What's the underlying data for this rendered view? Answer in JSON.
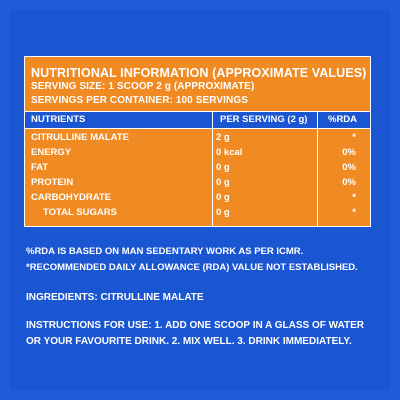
{
  "header": {
    "title": "NUTRITIONAL INFORMATION (APPROXIMATE VALUES)",
    "serving_size": "SERVING SIZE: 1 SCOOP 2 g (APPROXIMATE)",
    "servings_per_container": "SERVINGS PER CONTAINER: 100 SERVINGS"
  },
  "table": {
    "columns": [
      "NUTRIENTS",
      "PER SERVING (2 g)",
      "%RDA"
    ],
    "rows": [
      {
        "nutrient": "CITRULLINE MALATE",
        "per_serving": "2 g",
        "rda": "*"
      },
      {
        "nutrient": "ENERGY",
        "per_serving": "0 kcal",
        "rda": "0%"
      },
      {
        "nutrient": "FAT",
        "per_serving": "0 g",
        "rda": "0%"
      },
      {
        "nutrient": "PROTEIN",
        "per_serving": "0 g",
        "rda": "0%"
      },
      {
        "nutrient": "CARBOHYDRATE",
        "per_serving": "0 g",
        "rda": "*"
      },
      {
        "nutrient": "TOTAL SUGARS",
        "per_serving": "0 g",
        "rda": "*"
      }
    ]
  },
  "notes": {
    "rda_basis": "%RDA IS BASED ON MAN SEDENTARY WORK AS PER ICMR.",
    "rda_not_established": "*RECOMMENDED DAILY ALLOWANCE (RDA) VALUE NOT ESTABLISHED."
  },
  "ingredients": "INGREDIENTS: CITRULLINE MALATE",
  "instructions": "INSTRUCTIONS FOR USE: 1. ADD ONE SCOOP IN A GLASS OF WATER OR YOUR FAVOURITE DRINK. 2. MIX WELL. 3. DRINK IMMEDIATELY.",
  "colors": {
    "background": "#1e5bd6",
    "panel": "#f08a23",
    "text": "#ffffff"
  }
}
